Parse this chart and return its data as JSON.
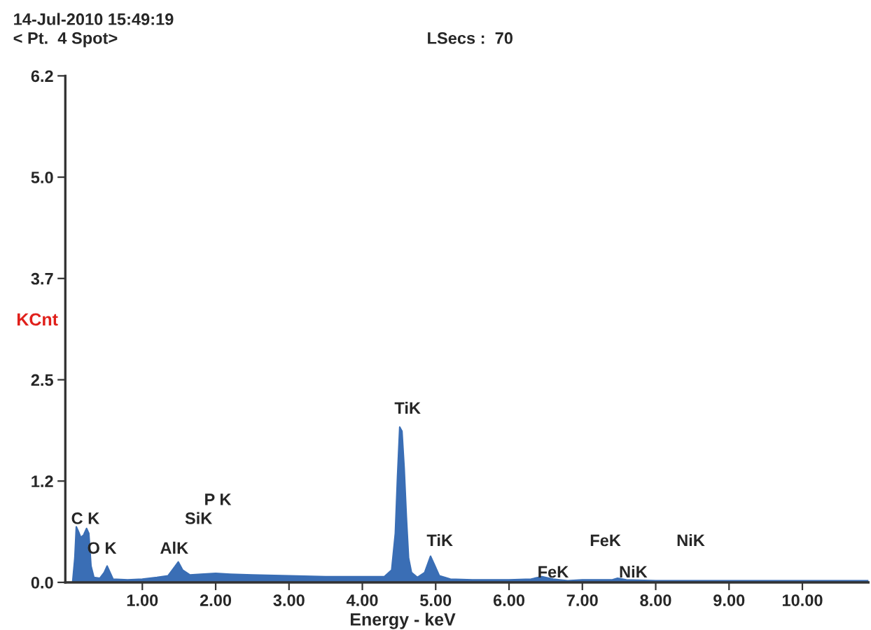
{
  "chart_data": {
    "type": "area",
    "xlabel": "Energy - keV",
    "ylabel": "KCnt",
    "x": [
      0.05,
      0.08,
      0.1,
      0.13,
      0.16,
      0.2,
      0.24,
      0.27,
      0.3,
      0.34,
      0.42,
      0.48,
      0.52,
      0.56,
      0.6,
      0.8,
      1.0,
      1.2,
      1.35,
      1.45,
      1.49,
      1.55,
      1.65,
      1.8,
      2.0,
      2.2,
      2.5,
      3.0,
      3.5,
      4.0,
      4.3,
      4.4,
      4.45,
      4.48,
      4.51,
      4.54,
      4.57,
      4.6,
      4.63,
      4.67,
      4.75,
      4.85,
      4.93,
      4.98,
      5.05,
      5.2,
      5.5,
      6.0,
      6.3,
      6.45,
      6.6,
      6.8,
      7.0,
      7.4,
      7.48,
      7.6,
      8.0,
      9.0,
      10.0,
      10.9
    ],
    "series": [
      {
        "color": "#3a6eb5",
        "values": [
          0,
          0.3,
          0.68,
          0.62,
          0.55,
          0.58,
          0.66,
          0.6,
          0.2,
          0.06,
          0.05,
          0.12,
          0.2,
          0.12,
          0.04,
          0.03,
          0.04,
          0.06,
          0.08,
          0.2,
          0.25,
          0.15,
          0.09,
          0.1,
          0.11,
          0.1,
          0.09,
          0.08,
          0.07,
          0.07,
          0.07,
          0.15,
          0.6,
          1.3,
          1.9,
          1.85,
          1.4,
          0.8,
          0.3,
          0.12,
          0.06,
          0.12,
          0.32,
          0.22,
          0.08,
          0.04,
          0.03,
          0.03,
          0.04,
          0.07,
          0.04,
          0.02,
          0.03,
          0.03,
          0.05,
          0.03,
          0.02,
          0.02,
          0.02,
          0.02
        ]
      }
    ],
    "xlim": [
      -0.05,
      10.9
    ],
    "xticks": [
      {
        "value": 1,
        "label": "1.00"
      },
      {
        "value": 2,
        "label": "2.00"
      },
      {
        "value": 3,
        "label": "3.00"
      },
      {
        "value": 4,
        "label": "4.00"
      },
      {
        "value": 5,
        "label": "5.00"
      },
      {
        "value": 6,
        "label": "6.00"
      },
      {
        "value": 7,
        "label": "7.00"
      },
      {
        "value": 8,
        "label": "8.00"
      },
      {
        "value": 9,
        "label": "9.00"
      },
      {
        "value": 10,
        "label": "10.00"
      }
    ],
    "ylim": [
      0,
      6.2
    ],
    "yticks": [
      {
        "value": 0,
        "label": "0.0"
      },
      {
        "value": 1.24,
        "label": "1.2"
      },
      {
        "value": 2.48,
        "label": "2.5"
      },
      {
        "value": 3.72,
        "label": "3.7"
      },
      {
        "value": 4.96,
        "label": "5.0"
      },
      {
        "value": 6.2,
        "label": "6.2"
      }
    ],
    "grid": false,
    "legend": false,
    "annotations": [
      "14-Jul-2010 15:49:19",
      "< Pt.  4 Spot>",
      "LSecs :  70",
      "C K",
      "O K",
      "AlK",
      "SiK",
      "P K",
      "TiK",
      "TiK",
      "FeK",
      "FeK",
      "NiK",
      "NiK"
    ]
  }
}
